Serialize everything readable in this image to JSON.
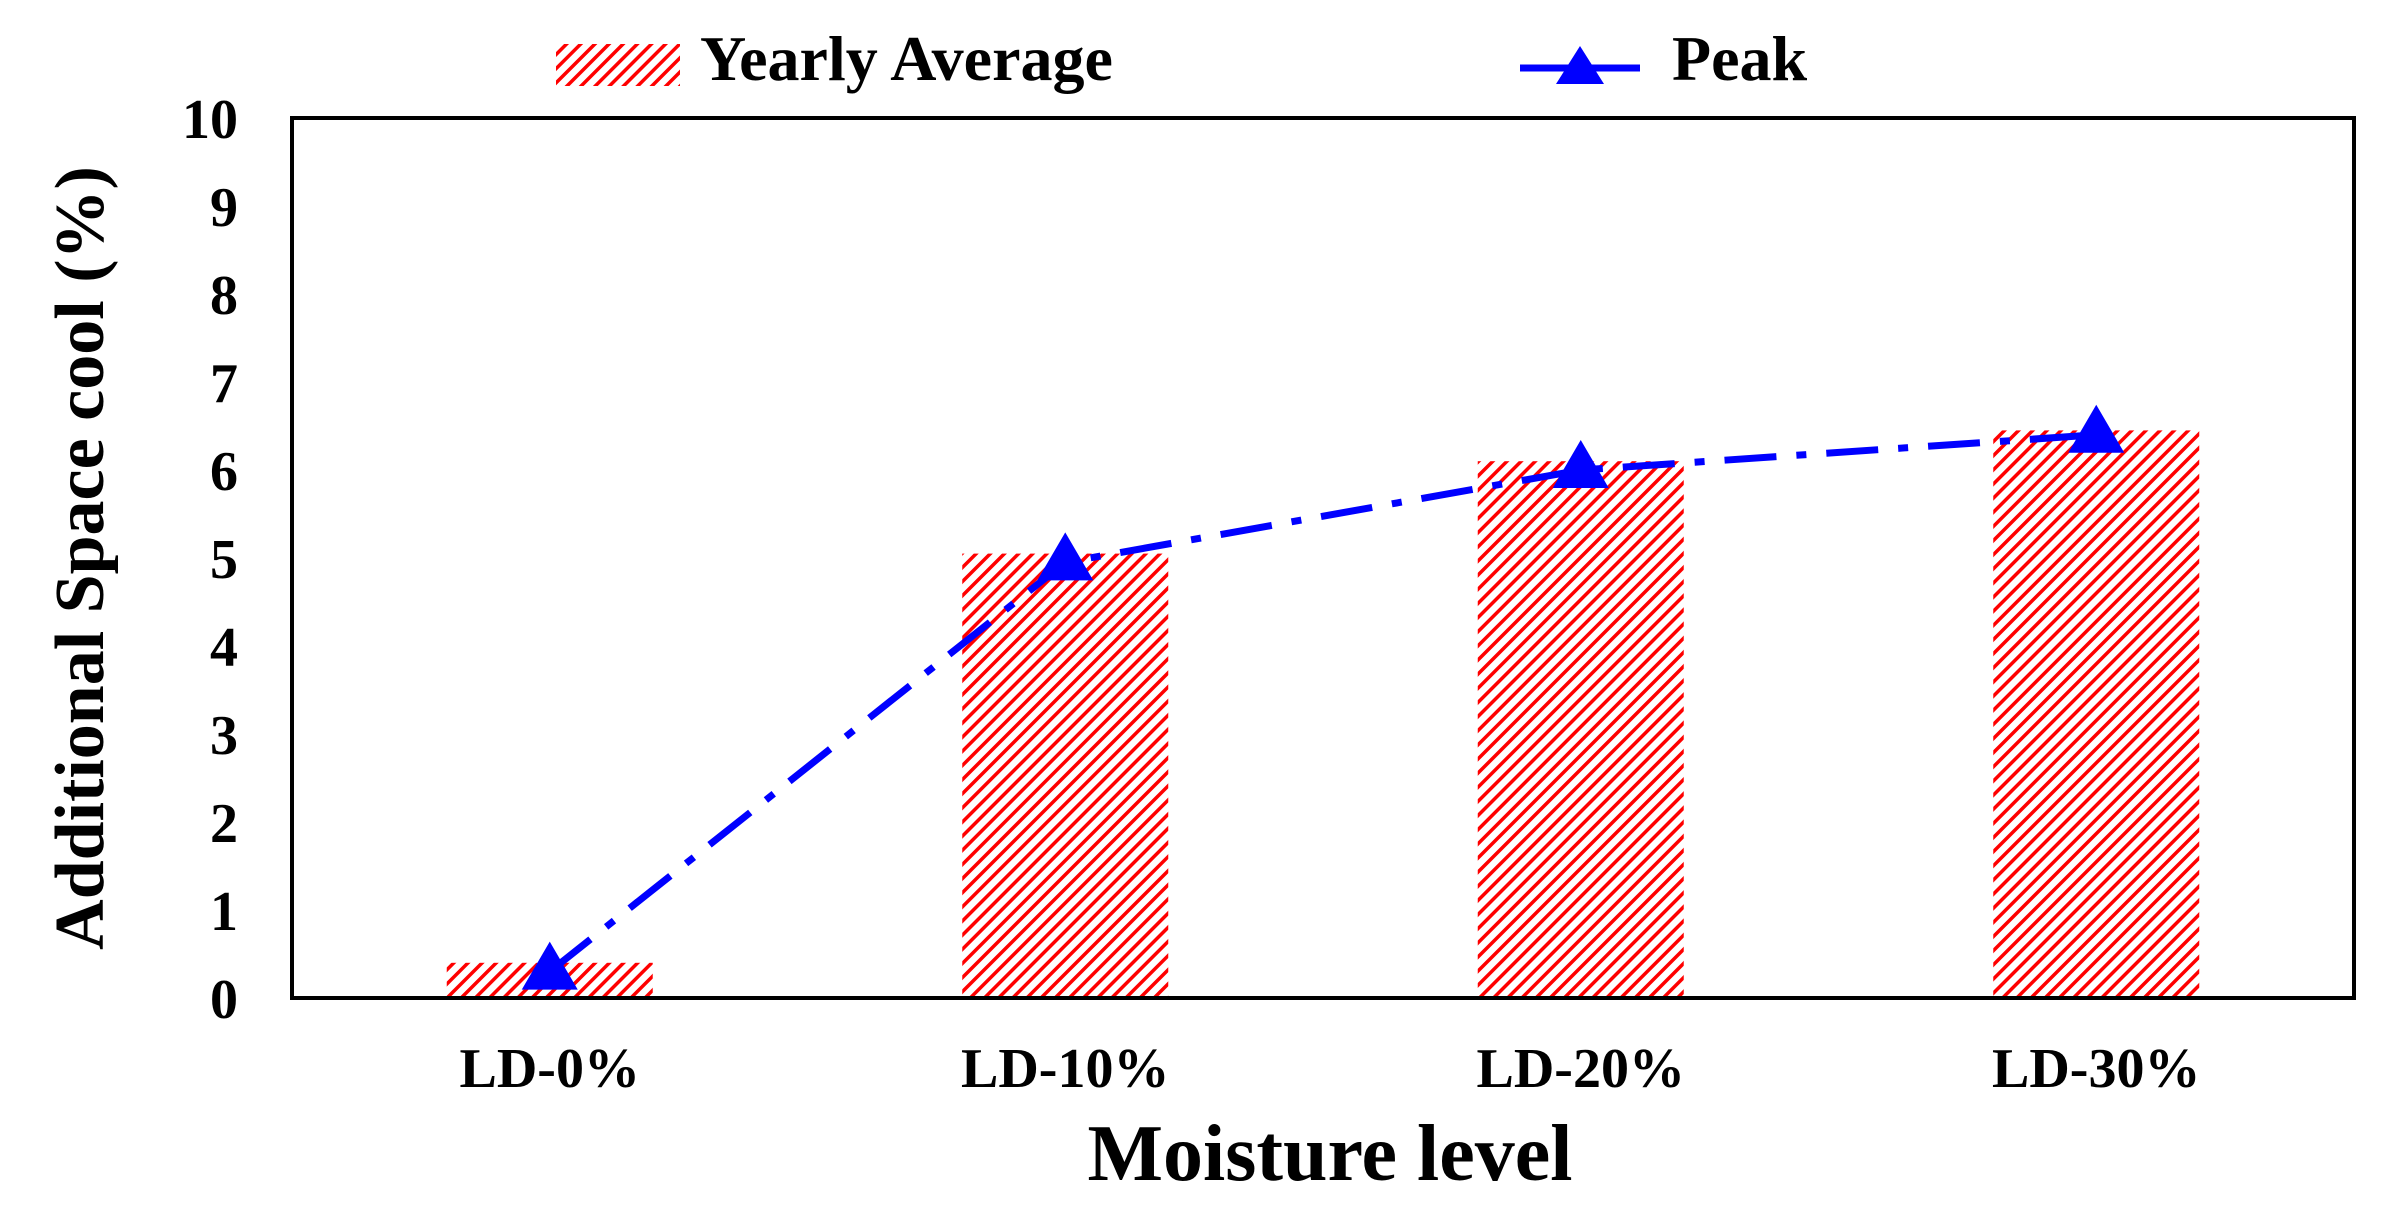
{
  "chart_data": {
    "type": "bar",
    "categories": [
      "LD-0%",
      "LD-10%",
      "LD-20%",
      "LD-30%"
    ],
    "series": [
      {
        "name": "Yearly Average",
        "kind": "bar",
        "values": [
          0.4,
          5.05,
          6.1,
          6.45
        ],
        "color": "#ff0000"
      },
      {
        "name": "Peak",
        "kind": "line",
        "marker": "triangle",
        "line_style": "dash-dot",
        "values": [
          0.3,
          4.95,
          6.0,
          6.4
        ],
        "color": "#0000ff"
      }
    ],
    "title": "",
    "xlabel": "Moisture level",
    "ylabel": "Additional Space cool (%)",
    "ylim": [
      0,
      10
    ],
    "yticks": [
      "0",
      "1",
      "2",
      "3",
      "4",
      "5",
      "6",
      "7",
      "8",
      "9",
      "10"
    ],
    "grid": false,
    "legend_position": "top-center"
  }
}
